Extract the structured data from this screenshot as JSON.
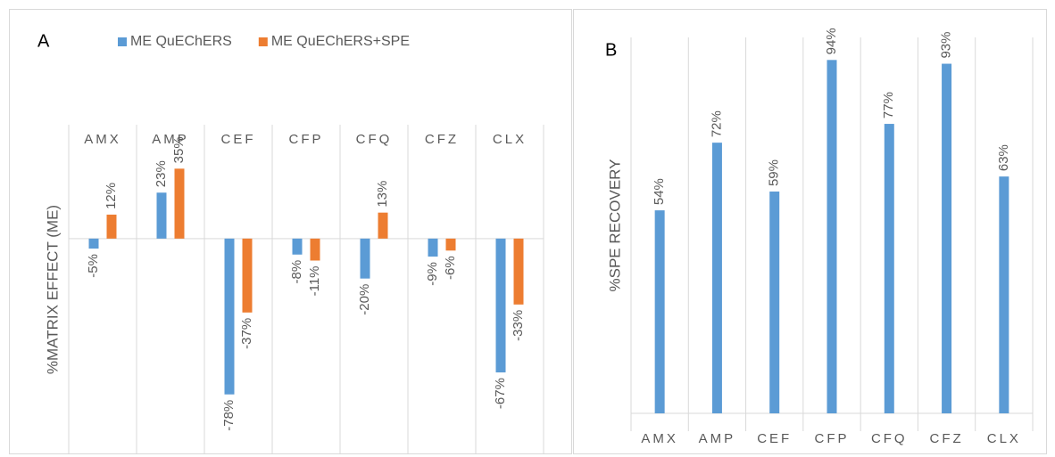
{
  "chart_data": [
    {
      "type": "bar",
      "label": "A",
      "y_label": "%MATRIX EFFECT (ME)",
      "categories": [
        "AMX",
        "AMP",
        "CEF",
        "CFP",
        "CFQ",
        "CFZ",
        "CLX"
      ],
      "series": [
        {
          "name": "ME QuEChERS",
          "color": "#5b9bd5",
          "values": [
            -5,
            23,
            -78,
            -8,
            -20,
            -9,
            -67
          ],
          "value_labels": [
            "-5%",
            "23%",
            "-78%",
            "-8%",
            "-20%",
            "-9%",
            "-67%"
          ]
        },
        {
          "name": "ME QuEChERS+SPE",
          "color": "#ed7d31",
          "values": [
            12,
            35,
            -37,
            -11,
            13,
            -6,
            -33
          ],
          "value_labels": [
            "12%",
            "35%",
            "-37%",
            "-11%",
            "13%",
            "-6%",
            "-33%"
          ]
        }
      ],
      "ylim": [
        -108,
        57
      ],
      "legend": "top"
    },
    {
      "type": "bar",
      "label": "B",
      "y_label": "%SPE RECOVERY",
      "categories": [
        "AMX",
        "AMP",
        "CEF",
        "CFP",
        "CFQ",
        "CFZ",
        "CLX"
      ],
      "series": [
        {
          "color": "#5b9bd5",
          "values": [
            54,
            72,
            59,
            94,
            77,
            93,
            63
          ],
          "value_labels": [
            "54%",
            "72%",
            "59%",
            "94%",
            "77%",
            "93%",
            "63%"
          ]
        }
      ],
      "ylim": [
        0,
        100
      ]
    }
  ]
}
